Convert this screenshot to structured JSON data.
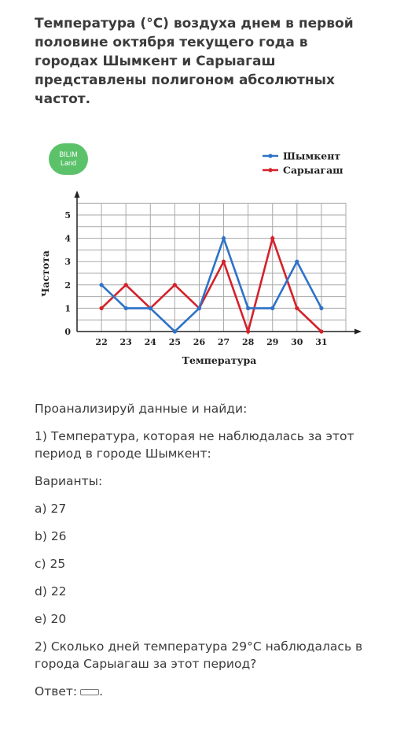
{
  "question_title": "Температура (°C) воздуха днем в первой половине октября текущего года в городах Шымкент и Сарыагаш представлены полигоном абсолютных частот.",
  "logo_text": [
    "BILIM",
    "Land"
  ],
  "chart_data": {
    "type": "line",
    "x": [
      22,
      23,
      24,
      25,
      26,
      27,
      28,
      29,
      30,
      31
    ],
    "series": [
      {
        "name": "Шымкент",
        "values": [
          2,
          1,
          1,
          0,
          1,
          4,
          1,
          1,
          3,
          1
        ],
        "color": "#2e72c8"
      },
      {
        "name": "Сарыагаш",
        "values": [
          1,
          2,
          1,
          2,
          1,
          3,
          0,
          4,
          1,
          0
        ],
        "color": "#d4212b"
      }
    ],
    "xlabel": "Температура",
    "ylabel": "Частота",
    "ylim": [
      0,
      5
    ],
    "yticks": [
      0,
      1,
      2,
      3,
      4,
      5
    ],
    "grid": true,
    "legend": "top-right"
  },
  "instructions": "Проанализируй данные и найди:",
  "question1": "1) Температура, которая не наблюдалась за этот период в городе Шымкент:",
  "options_label": "Варианты:",
  "options": [
    "a) 27",
    "b) 26",
    "c) 25",
    "d) 22",
    "e) 20"
  ],
  "question2": "2) Сколько дней температура 29°C наблюдалась в города Сарыагаш за этот период?",
  "answer_label": "Ответ:",
  "answer_end": "."
}
